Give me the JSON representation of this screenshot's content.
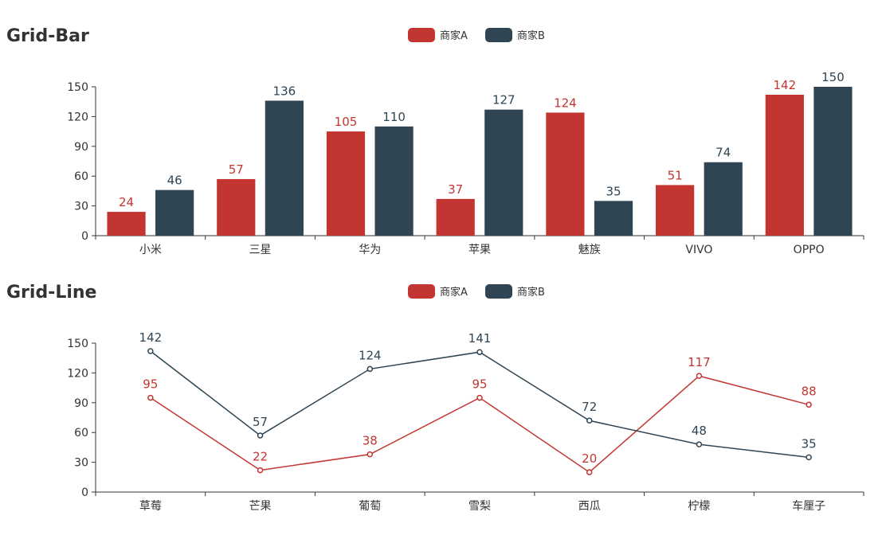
{
  "colors": {
    "seriesA": "#c23531",
    "seriesB": "#2f4554"
  },
  "chart_data": [
    {
      "type": "bar",
      "title": "Grid-Bar",
      "categories": [
        "小米",
        "三星",
        "华为",
        "苹果",
        "魅族",
        "VIVO",
        "OPPO"
      ],
      "series": [
        {
          "name": "商家A",
          "values": [
            24,
            57,
            105,
            37,
            124,
            51,
            142
          ]
        },
        {
          "name": "商家B",
          "values": [
            46,
            136,
            110,
            127,
            35,
            74,
            150
          ]
        }
      ],
      "ylim": [
        0,
        150
      ],
      "yticks": [
        0,
        30,
        60,
        90,
        120,
        150
      ],
      "legend": "top-center",
      "data_labels": true,
      "grid": false
    },
    {
      "type": "line",
      "title": "Grid-Line",
      "categories": [
        "草莓",
        "芒果",
        "葡萄",
        "雪梨",
        "西瓜",
        "柠檬",
        "车厘子"
      ],
      "series": [
        {
          "name": "商家A",
          "values": [
            95,
            22,
            38,
            95,
            20,
            117,
            88
          ]
        },
        {
          "name": "商家B",
          "values": [
            142,
            57,
            124,
            141,
            72,
            48,
            35
          ]
        }
      ],
      "ylim": [
        0,
        150
      ],
      "yticks": [
        0,
        30,
        60,
        90,
        120,
        150
      ],
      "legend": "top-center",
      "data_labels": true,
      "grid": false
    }
  ]
}
